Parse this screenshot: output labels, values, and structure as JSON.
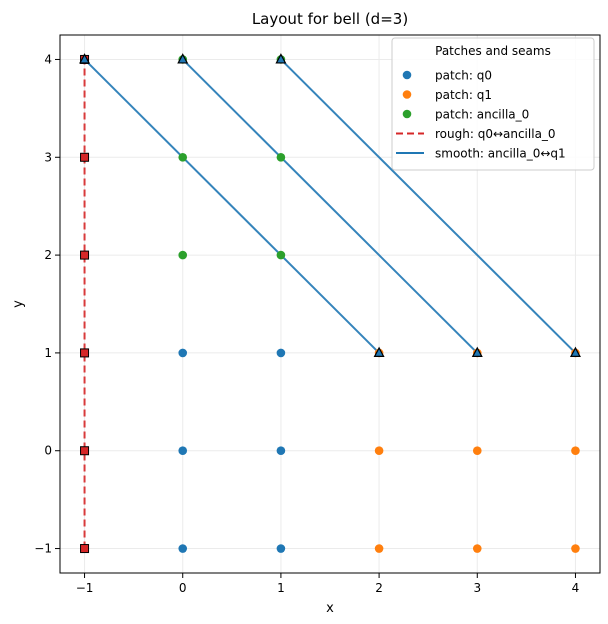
{
  "chart_data": {
    "type": "scatter",
    "title": "Layout for bell (d=3)",
    "xlabel": "x",
    "ylabel": "y",
    "xlim": [
      -1.25,
      4.25
    ],
    "ylim": [
      -1.25,
      4.25
    ],
    "xticks": [
      -1,
      0,
      1,
      2,
      3,
      4
    ],
    "yticks": [
      -1,
      0,
      1,
      2,
      3,
      4
    ],
    "xtick_labels": [
      "−1",
      "0",
      "1",
      "2",
      "3",
      "4"
    ],
    "ytick_labels": [
      "−1",
      "0",
      "1",
      "2",
      "3",
      "4"
    ],
    "grid": true,
    "legend": {
      "title": "Patches and seams",
      "placement": "top-right"
    },
    "series": [
      {
        "name": "patch: q0",
        "kind": "scatter",
        "color": "#1f77b4",
        "points": [
          [
            -1,
            -1
          ],
          [
            -1,
            0
          ],
          [
            -1,
            1
          ],
          [
            -1,
            2
          ],
          [
            -1,
            3
          ],
          [
            -1,
            4
          ],
          [
            0,
            -1
          ],
          [
            0,
            0
          ],
          [
            0,
            1
          ],
          [
            1,
            -1
          ],
          [
            1,
            0
          ],
          [
            1,
            1
          ]
        ]
      },
      {
        "name": "patch: q1",
        "kind": "scatter",
        "color": "#ff7f0e",
        "points": [
          [
            2,
            -1
          ],
          [
            2,
            0
          ],
          [
            2,
            1
          ],
          [
            3,
            -1
          ],
          [
            3,
            0
          ],
          [
            3,
            1
          ],
          [
            4,
            -1
          ],
          [
            4,
            0
          ],
          [
            4,
            1
          ]
        ]
      },
      {
        "name": "patch: ancilla_0",
        "kind": "scatter",
        "color": "#2ca02c",
        "points": [
          [
            0,
            2
          ],
          [
            0,
            3
          ],
          [
            0,
            4
          ],
          [
            1,
            2
          ],
          [
            1,
            3
          ],
          [
            1,
            4
          ]
        ]
      },
      {
        "name": "rough: q0↔ancilla_0",
        "kind": "seam",
        "style": "dashed",
        "color": "#d62728",
        "segments": [
          [
            [
              -1,
              -1
            ],
            [
              -1,
              4
            ]
          ]
        ],
        "marker": "square",
        "marker_points": [
          [
            -1,
            -1
          ],
          [
            -1,
            0
          ],
          [
            -1,
            1
          ],
          [
            -1,
            2
          ],
          [
            -1,
            3
          ],
          [
            -1,
            4
          ]
        ]
      },
      {
        "name": "smooth: ancilla_0↔q1",
        "kind": "seam",
        "style": "solid",
        "color": "#1f77b4",
        "segments": [
          [
            [
              -1,
              4
            ],
            [
              2,
              1
            ]
          ],
          [
            [
              0,
              4
            ],
            [
              3,
              1
            ]
          ],
          [
            [
              1,
              4
            ],
            [
              4,
              1
            ]
          ]
        ],
        "marker": "triangle",
        "marker_points": [
          [
            -1,
            4
          ],
          [
            0,
            4
          ],
          [
            1,
            4
          ],
          [
            2,
            1
          ],
          [
            3,
            1
          ],
          [
            4,
            1
          ]
        ]
      }
    ]
  }
}
